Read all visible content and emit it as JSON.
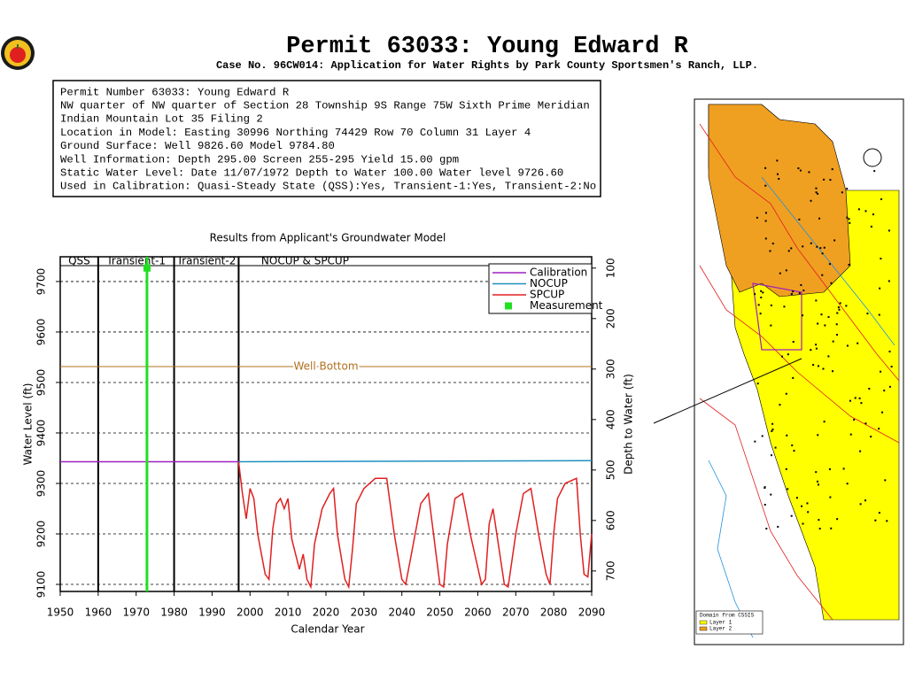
{
  "header": {
    "title": "Permit 63033:   Young Edward R",
    "subtitle": "Case No. 96CW014: Application for Water Rights by Park County Sportsmen's Ranch, LLP."
  },
  "info_box": {
    "lines": [
      "Permit Number 63033: Young Edward R",
      "NW quarter of NW quarter of Section 28 Township 9S Range 75W Sixth Prime Meridian",
      "Indian Mountain Lot 35 Filing 2",
      "Location in Model: Easting 30996 Northing  74429 Row  70 Column 31 Layer 4",
      "Ground Surface: Well  9826.60 Model  9784.80",
      "Well Information: Depth   295.00 Screen 255-295 Yield    15.00 gpm",
      "Static Water Level: Date 11/07/1972 Depth to Water   100.00 Water level  9726.60",
      "Used in Calibration: Quasi-Steady State (QSS):Yes, Transient-1:Yes, Transient-2:No"
    ]
  },
  "map": {
    "legend_title": "Domain from CSSIS",
    "legend_items": [
      {
        "label": "Layer 1",
        "color": "#ffff00"
      },
      {
        "label": "Layer 2",
        "color": "#f0a020"
      }
    ]
  },
  "chart_data": {
    "type": "line",
    "title": "Results from Applicant's Groundwater Model",
    "x_label": "Calendar Year",
    "y_label": "Water Level (ft)",
    "y2_label": "Depth to Water (ft)",
    "xlim": [
      1950,
      2090
    ],
    "xticks": [
      1950,
      1960,
      1970,
      1980,
      1990,
      2000,
      2010,
      2020,
      2030,
      2040,
      2050,
      2060,
      2070,
      2080,
      2090
    ],
    "ylim": [
      9086,
      9749
    ],
    "yticks": [
      9100,
      9200,
      9300,
      9400,
      9500,
      9600,
      9700
    ],
    "y2lim": [
      740.6,
      77.6
    ],
    "y2ticks": [
      100,
      200,
      300,
      400,
      500,
      600,
      700
    ],
    "grid": true,
    "legend": "top-right",
    "periods": [
      {
        "label": "QSS",
        "start": 1950,
        "end": 1960
      },
      {
        "label": "Transient-1",
        "start": 1960,
        "end": 1980
      },
      {
        "label": "Transient-2",
        "start": 1980,
        "end": 1997
      },
      {
        "label": "NOCUP  &  SPCUP",
        "start": 1997,
        "end": 2090
      }
    ],
    "reference_lines": [
      {
        "label": "Well Bottom",
        "value": 9531.6,
        "color": "#b07020"
      }
    ],
    "series": [
      {
        "name": "Calibration",
        "color": "#a020c0",
        "x": [
          1950,
          1997
        ],
        "values": [
          9343,
          9343
        ]
      },
      {
        "name": "NOCUP",
        "color": "#1e90c0",
        "x": [
          1997,
          2090
        ],
        "values": [
          9343,
          9345
        ]
      },
      {
        "name": "SPCUP",
        "color": "#e02020",
        "x": [
          1997,
          1998,
          1999,
          2000,
          2001,
          2002,
          2004,
          2005,
          2006,
          2007,
          2008,
          2009,
          2010,
          2011,
          2013,
          2014,
          2015,
          2016,
          2017,
          2019,
          2021,
          2022,
          2023,
          2025,
          2026,
          2027,
          2028,
          2030,
          2033,
          2036,
          2038,
          2040,
          2041,
          2043,
          2045,
          2047,
          2048,
          2050,
          2051,
          2052,
          2054,
          2056,
          2058,
          2061,
          2062,
          2063,
          2064,
          2065,
          2067,
          2068,
          2070,
          2072,
          2074,
          2076,
          2078,
          2079,
          2080,
          2081,
          2083,
          2086,
          2087,
          2088,
          2089,
          2090
        ],
        "values": [
          9343,
          9280,
          9230,
          9290,
          9270,
          9200,
          9120,
          9110,
          9210,
          9260,
          9270,
          9250,
          9270,
          9190,
          9130,
          9160,
          9110,
          9095,
          9180,
          9250,
          9280,
          9290,
          9200,
          9110,
          9095,
          9170,
          9260,
          9290,
          9310,
          9310,
          9200,
          9110,
          9100,
          9180,
          9260,
          9280,
          9220,
          9100,
          9095,
          9180,
          9270,
          9280,
          9200,
          9100,
          9110,
          9220,
          9250,
          9200,
          9100,
          9095,
          9200,
          9280,
          9290,
          9200,
          9120,
          9100,
          9200,
          9270,
          9300,
          9310,
          9200,
          9120,
          9115,
          9200
        ]
      },
      {
        "name": "Measurement",
        "color": "#20e020",
        "marker": true,
        "x": [
          1972.85
        ],
        "values": [
          9726.6
        ]
      }
    ]
  }
}
